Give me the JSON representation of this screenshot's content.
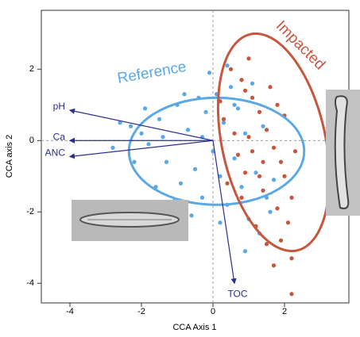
{
  "chart_data": {
    "type": "scatter",
    "x_label": "CCA Axis 1",
    "y_label": "CCA axis 2",
    "xlim": [
      -4.8,
      3.8
    ],
    "ylim": [
      -4.55,
      3.65
    ],
    "xticks": [
      -4,
      -2,
      0,
      2
    ],
    "yticks": [
      -4,
      -2,
      0,
      2
    ],
    "zero_lines": true,
    "series": [
      {
        "name": "Reference",
        "color": "#5aa9e6",
        "x": [
          -2.6,
          -2.3,
          -2.0,
          -1.8,
          -1.5,
          -1.3,
          -1.0,
          -0.9,
          -0.7,
          -0.5,
          -0.4,
          -0.3,
          -0.2,
          0.0,
          0.1,
          0.2,
          0.3,
          0.4,
          0.5,
          0.6,
          0.7,
          0.8,
          0.9,
          1.0,
          1.1,
          1.2,
          1.4,
          1.5,
          -1.6,
          -1.1,
          -0.6,
          0.2,
          -2.2,
          -1.9,
          -0.8,
          -0.1,
          0.4,
          1.3,
          1.6,
          -2.8,
          -0.3,
          0.6,
          -1.4,
          0.9,
          1.7
        ],
        "values": [
          0.5,
          0.4,
          0.2,
          -0.1,
          0.6,
          -0.6,
          1.0,
          -1.2,
          0.3,
          -0.8,
          1.2,
          -1.6,
          0.8,
          -0.3,
          1.3,
          -1.0,
          0.5,
          -1.8,
          1.5,
          -0.5,
          0.9,
          -1.3,
          0.2,
          -2.2,
          1.6,
          -0.9,
          0.4,
          -1.6,
          -1.3,
          -1.7,
          -2.1,
          -2.3,
          -0.6,
          0.9,
          1.3,
          1.9,
          2.1,
          -2.6,
          -2.0,
          -0.2,
          0.1,
          1.0,
          0.1,
          -3.1,
          -1.1
        ],
        "ellipse": {
          "cx": 0.1,
          "cy": -0.3,
          "rx": 2.45,
          "ry": 1.5,
          "angle": 0
        }
      },
      {
        "name": "Impacted",
        "color": "#c8553d",
        "x": [
          0.5,
          0.8,
          1.1,
          1.3,
          1.5,
          1.7,
          1.9,
          2.0,
          1.4,
          1.8,
          2.1,
          1.9,
          2.2,
          1.0,
          0.7,
          0.9,
          0.3,
          0.4,
          1.2,
          1.6,
          1.0,
          0.2,
          0.8,
          1.4,
          2.0,
          2.2,
          1.5,
          2.2,
          1.7,
          0.6,
          1.1,
          1.8,
          1.3,
          0.9,
          2.3
        ],
        "values": [
          2.0,
          1.7,
          1.2,
          0.8,
          0.3,
          -0.2,
          -0.6,
          -1.0,
          -1.4,
          -1.9,
          -2.3,
          -2.8,
          -3.3,
          0.1,
          -0.4,
          -0.9,
          0.6,
          -1.2,
          -2.4,
          1.5,
          2.3,
          1.1,
          -1.6,
          -0.6,
          0.7,
          -1.6,
          -2.9,
          -4.3,
          -3.5,
          0.2,
          -0.3,
          1.0,
          -1.0,
          1.4,
          -0.3
        ],
        "ellipse": {
          "cx": 1.7,
          "cy": -0.05,
          "rx": 1.45,
          "ry": 3.1,
          "angle": -12
        }
      }
    ],
    "vectors": {
      "color": "#2b2f8f",
      "names": [
        "pH",
        "Ca",
        "ANC",
        "TOC"
      ],
      "x": [
        -4.0,
        -4.0,
        -4.0,
        0.6
      ],
      "values": [
        0.85,
        0.0,
        -0.45,
        -4.0
      ]
    }
  }
}
